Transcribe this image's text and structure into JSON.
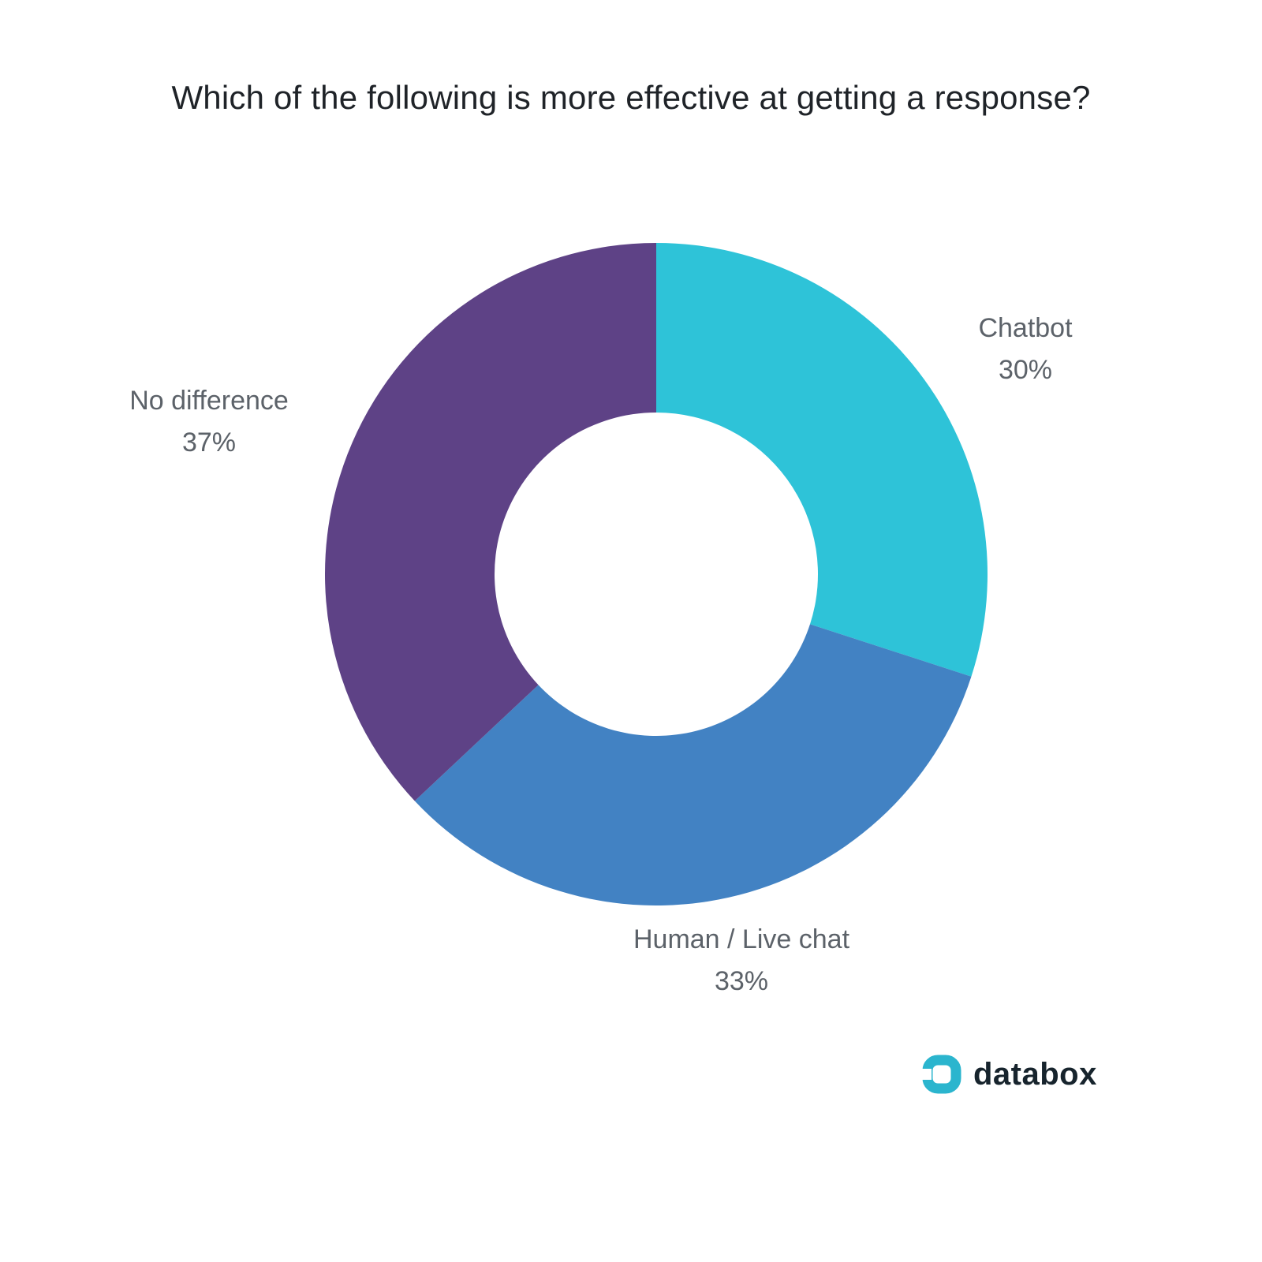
{
  "title": "Which of the following is more effective at getting a response?",
  "chart_data": {
    "type": "pie",
    "donut": true,
    "start_angle_deg": 0,
    "direction": "clockwise",
    "title": "Which of the following is more effective at getting a response?",
    "legend_position": "labels-outside",
    "slices": [
      {
        "label": "Chatbot",
        "value": 30,
        "display": "30%",
        "color": "#2ec3d8"
      },
      {
        "label": "Human / Live chat",
        "value": 33,
        "display": "33%",
        "color": "#4282c3"
      },
      {
        "label": "No difference",
        "value": 37,
        "display": "37%",
        "color": "#5e4286"
      }
    ]
  },
  "logo": {
    "text": "databox",
    "icon_color": "#2bb5ce"
  }
}
